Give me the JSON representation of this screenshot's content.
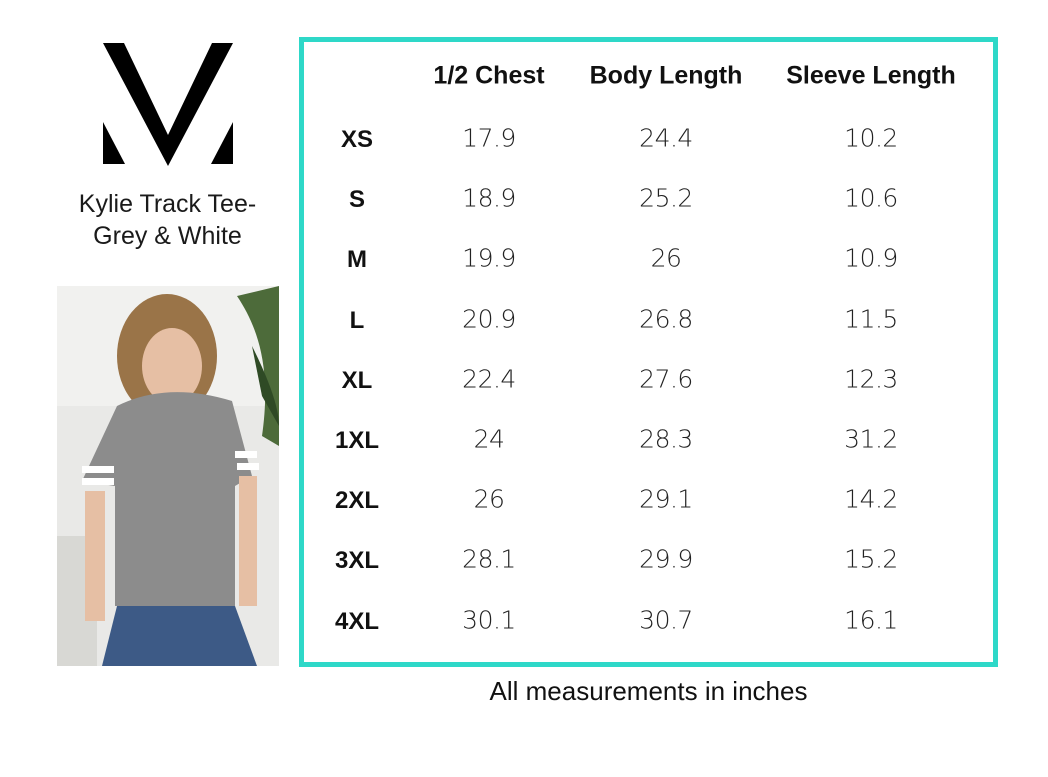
{
  "product": {
    "title_line1": "Kylie Track Tee-",
    "title_line2": "Grey & White"
  },
  "logo": {
    "letter": "M"
  },
  "colors": {
    "border": "#2ed8c8",
    "text": "#111111"
  },
  "table": {
    "columns": [
      "1/2 Chest",
      "Body Length",
      "Sleeve Length"
    ],
    "rows": [
      {
        "size": "XS",
        "values": [
          "17.9",
          "24.4",
          "10.2"
        ]
      },
      {
        "size": "S",
        "values": [
          "18.9",
          "25.2",
          "10.6"
        ]
      },
      {
        "size": "M",
        "values": [
          "19.9",
          "26",
          "10.9"
        ]
      },
      {
        "size": "L",
        "values": [
          "20.9",
          "26.8",
          "11.5"
        ]
      },
      {
        "size": "XL",
        "values": [
          "22.4",
          "27.6",
          "12.3"
        ]
      },
      {
        "size": "1XL",
        "values": [
          "24",
          "28.3",
          "31.2"
        ]
      },
      {
        "size": "2XL",
        "values": [
          "26",
          "29.1",
          "14.2"
        ]
      },
      {
        "size": "3XL",
        "values": [
          "28.1",
          "29.9",
          "15.2"
        ]
      },
      {
        "size": "4XL",
        "values": [
          "30.1",
          "30.7",
          "16.1"
        ]
      }
    ]
  },
  "footer": "All measurements in inches"
}
